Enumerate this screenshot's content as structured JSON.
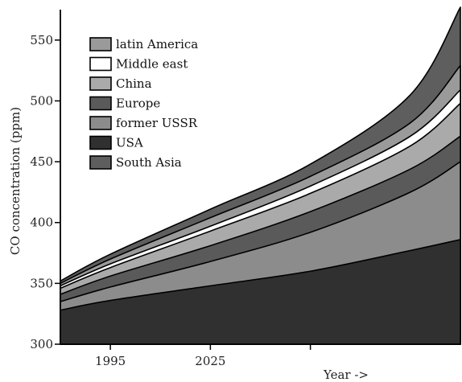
{
  "chart_data": {
    "type": "area",
    "stacked": true,
    "title": "",
    "xlabel": "Year ->",
    "ylabel": "CO concentration (ppm)",
    "xlim": [
      1980,
      2100
    ],
    "ylim": [
      300,
      575
    ],
    "x_ticks": [
      1995,
      2025,
      2055
    ],
    "x_tick_labels": [
      "1995",
      "2025",
      ""
    ],
    "y_ticks": [
      300,
      350,
      400,
      450,
      500,
      550
    ],
    "y_tick_labels": [
      "300",
      "350",
      "400",
      "450",
      "500",
      "550"
    ],
    "x": [
      1980,
      1995,
      2025,
      2055,
      2085,
      2100
    ],
    "base": 300,
    "series": [
      {
        "name": "USA",
        "color": "#303030",
        "values": [
          328,
          336,
          348,
          360,
          377,
          386
        ]
      },
      {
        "name": "former USSR",
        "color": "#8c8c8c",
        "values": [
          335,
          347,
          368,
          392,
          425,
          450
        ]
      },
      {
        "name": "Europe",
        "color": "#5a5a5a",
        "values": [
          341,
          356,
          381,
          409,
          444,
          471
        ]
      },
      {
        "name": "China",
        "color": "#aaaaaa",
        "values": [
          346,
          363,
          393,
          424,
          463,
          498
        ]
      },
      {
        "name": "Middle east",
        "color": "#ffffff",
        "values": [
          348,
          366,
          397,
          430,
          471,
          509
        ]
      },
      {
        "name": "latin America",
        "color": "#9a9a9a",
        "values": [
          350,
          370,
          404,
          438,
          482,
          529
        ]
      },
      {
        "name": "South Asia",
        "color": "#5e5e5e",
        "values": [
          352,
          374,
          411,
          448,
          505,
          577
        ]
      }
    ],
    "legend": {
      "placement": "top-left",
      "order": [
        "latin America",
        "Middle east",
        "China",
        "Europe",
        "former USSR",
        "USA",
        "South Asia"
      ]
    },
    "grid": false
  }
}
